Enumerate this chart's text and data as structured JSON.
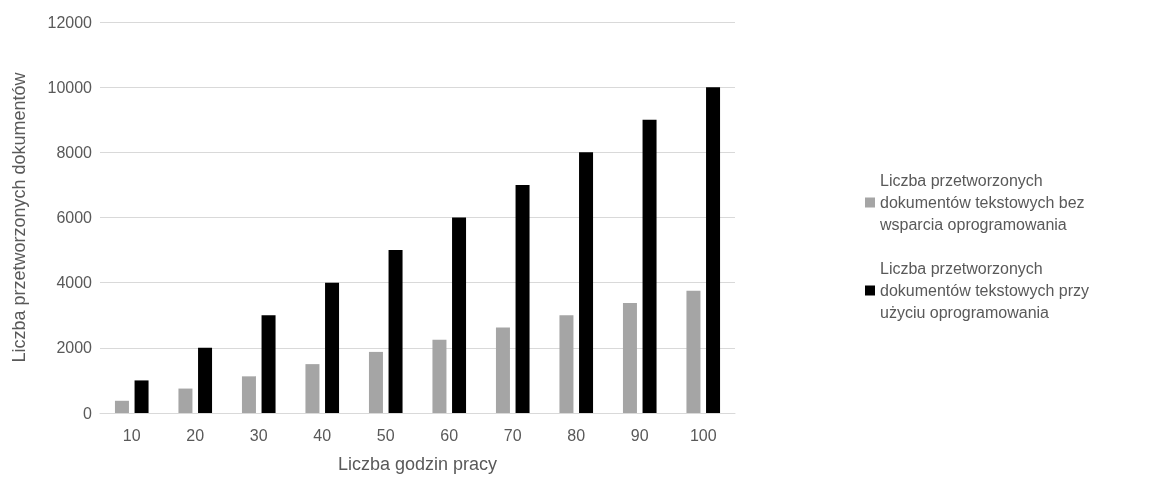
{
  "chart_data": {
    "type": "bar",
    "xlabel": "Liczba godzin pracy",
    "ylabel": "Liczba przetworzonych dokumentów",
    "categories": [
      "10",
      "20",
      "30",
      "40",
      "50",
      "60",
      "70",
      "80",
      "90",
      "100"
    ],
    "series": [
      {
        "name": "Liczba przetworzonych dokumentów tekstowych bez wsparcia oprogramowania",
        "color": "#a5a5a5",
        "values": [
          375,
          750,
          1125,
          1500,
          1875,
          2250,
          2625,
          3000,
          3375,
          3750
        ]
      },
      {
        "name": "Liczba przetworzonych dokumentów tekstowych przy użyciu oprogramowania",
        "color": "#000000",
        "values": [
          1000,
          2000,
          3000,
          4000,
          5000,
          6000,
          7000,
          8000,
          9000,
          10000
        ]
      }
    ],
    "ylim": [
      0,
      12000
    ],
    "yticks": [
      0,
      2000,
      4000,
      6000,
      8000,
      10000,
      12000
    ],
    "grid": "y",
    "legend": "right"
  }
}
